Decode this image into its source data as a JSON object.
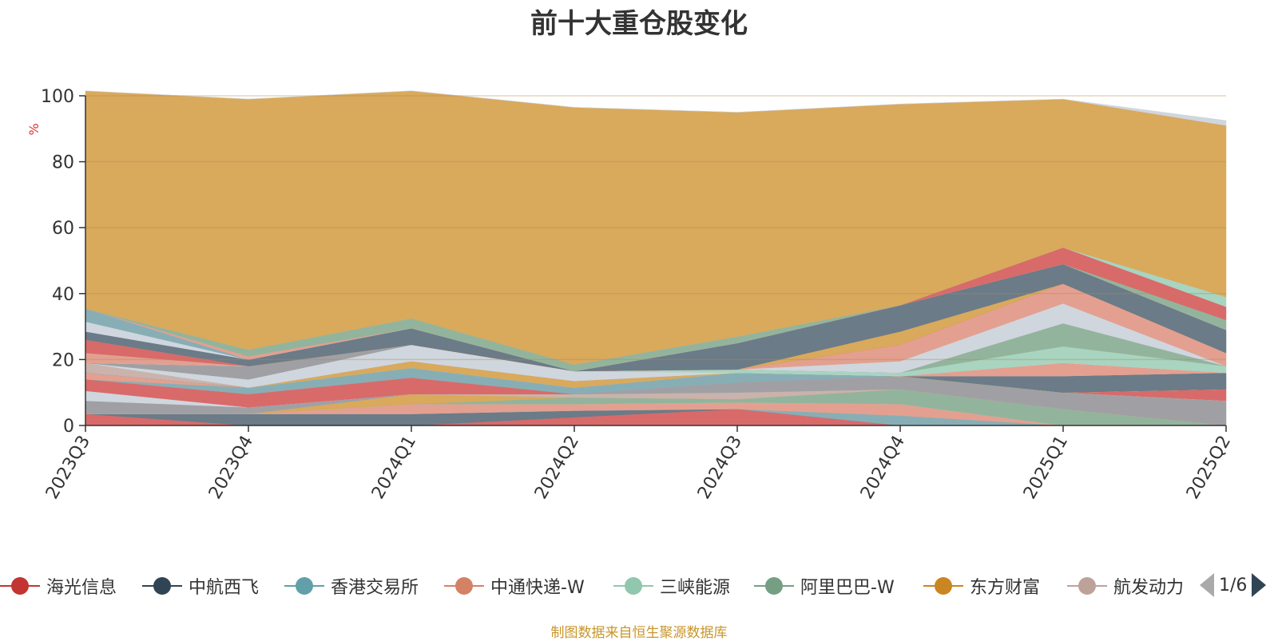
{
  "title": "前十大重仓股变化",
  "footer": "制图数据来自恒生聚源数据库",
  "pager": {
    "text": "1/6"
  },
  "legend": [
    {
      "name": "海光信息",
      "color": "#c23531"
    },
    {
      "name": "中航西飞",
      "color": "#2f4554"
    },
    {
      "name": "香港交易所",
      "color": "#61a0a8"
    },
    {
      "name": "中通快递-W",
      "color": "#d48265"
    },
    {
      "name": "三峡能源",
      "color": "#91c7ae"
    },
    {
      "name": "阿里巴巴-W",
      "color": "#749f83"
    },
    {
      "name": "东方财富",
      "color": "#ca8622"
    },
    {
      "name": "航发动力",
      "color": "#bda29a"
    }
  ],
  "chart_data": {
    "type": "area",
    "title": "前十大重仓股变化",
    "xlabel": "",
    "ylabel": "%",
    "ylim": [
      0,
      100
    ],
    "yticks": [
      "0",
      "20",
      "40",
      "60",
      "80",
      "100"
    ],
    "categories": [
      "2023Q3",
      "2023Q4",
      "2024Q1",
      "2024Q2",
      "2024Q3",
      "2024Q4",
      "2025Q1",
      "2025Q2"
    ],
    "grid": true,
    "legend_position": "bottom",
    "stacked": true,
    "series": [
      {
        "color": "#d96a6a",
        "values": [
          3.5,
          0,
          0,
          2.5,
          5,
          0,
          0,
          0
        ]
      },
      {
        "color": "#6b7b88",
        "values": [
          0,
          3.5,
          3.5,
          2,
          0,
          0,
          0,
          0
        ]
      },
      {
        "color": "#88aeb5",
        "values": [
          0,
          0,
          0,
          0,
          0,
          3,
          0,
          0
        ]
      },
      {
        "color": "#e3a090",
        "values": [
          0,
          0,
          3,
          2,
          2,
          3.5,
          0,
          0
        ]
      },
      {
        "color": "#a8d4c0",
        "values": [
          0,
          0,
          0,
          0,
          0,
          0,
          0,
          0
        ]
      },
      {
        "color": "#93b49c",
        "values": [
          0,
          0,
          0,
          2,
          1,
          4.5,
          5,
          0
        ]
      },
      {
        "color": "#d9a95c",
        "values": [
          0,
          0,
          3,
          0,
          0,
          0,
          0,
          0
        ]
      },
      {
        "color": "#c9b3ac",
        "values": [
          0,
          0,
          0,
          1,
          2,
          0,
          0,
          0
        ]
      },
      {
        "color": "#a0a0a4",
        "values": [
          4,
          2,
          0,
          0,
          3,
          4,
          5,
          7.5
        ]
      },
      {
        "color": "#cfd6de",
        "values": [
          3,
          0,
          0,
          0,
          0,
          0,
          0,
          0
        ]
      },
      {
        "color": "#d96a6a",
        "values": [
          3.5,
          4,
          5,
          0,
          0,
          0,
          0,
          3.5
        ]
      },
      {
        "color": "#88aeb5",
        "values": [
          0,
          2,
          3,
          2,
          3,
          0,
          0,
          0
        ]
      },
      {
        "color": "#e3a090",
        "values": [
          2,
          0,
          0,
          0,
          0,
          0,
          0,
          0
        ]
      },
      {
        "color": "#a8d4c0",
        "values": [
          0,
          0,
          0,
          0,
          0,
          0,
          0,
          0
        ]
      },
      {
        "color": "#d9a95c",
        "values": [
          0,
          0,
          2,
          2,
          0,
          0,
          0,
          0
        ]
      },
      {
        "color": "#6b7b88",
        "values": [
          0,
          0,
          0,
          0,
          0,
          0,
          5,
          5
        ]
      },
      {
        "color": "#c9b3ac",
        "values": [
          3,
          0,
          0,
          0,
          0,
          0,
          0,
          0
        ]
      },
      {
        "color": "#e3a090",
        "values": [
          0,
          0,
          0,
          0,
          0,
          0,
          4,
          0
        ]
      },
      {
        "color": "#cfd6de",
        "values": [
          0,
          2.5,
          5,
          3,
          0,
          0,
          0,
          0
        ]
      },
      {
        "color": "#a8d4c0",
        "values": [
          0,
          0,
          0,
          0,
          1,
          1,
          5,
          2
        ]
      },
      {
        "color": "#93b49c",
        "values": [
          0,
          0,
          0,
          0,
          0,
          0,
          7,
          0
        ]
      },
      {
        "color": "#a0a0a4",
        "values": [
          0,
          4,
          0,
          0,
          0,
          0,
          0,
          0
        ]
      },
      {
        "color": "#cfd6de",
        "values": [
          0,
          0,
          0,
          0,
          0,
          3.5,
          6,
          0
        ]
      },
      {
        "color": "#e3a090",
        "values": [
          3,
          0,
          0,
          0,
          0,
          5,
          6,
          4
        ]
      },
      {
        "color": "#d96a6a",
        "values": [
          4,
          0,
          0,
          0,
          0,
          0,
          0,
          0
        ]
      },
      {
        "color": "#d9a95c",
        "values": [
          0,
          0,
          0,
          0,
          0,
          4,
          0,
          0
        ]
      },
      {
        "color": "#6b7b88",
        "values": [
          2.5,
          2,
          5,
          0,
          8,
          8,
          6,
          7
        ]
      },
      {
        "color": "#cfd6de",
        "values": [
          3,
          0,
          0,
          0,
          0,
          0,
          0,
          0
        ]
      },
      {
        "color": "#88aeb5",
        "values": [
          4,
          0,
          0,
          0,
          0,
          0,
          0,
          0
        ]
      },
      {
        "color": "#e3a090",
        "values": [
          0,
          1,
          0,
          0,
          0,
          0,
          0,
          0
        ]
      },
      {
        "color": "#93b49c",
        "values": [
          0,
          2,
          3,
          2,
          2,
          0,
          0,
          3
        ]
      },
      {
        "color": "#d96a6a",
        "values": [
          0,
          0,
          0,
          0,
          0,
          0,
          5,
          4
        ]
      },
      {
        "color": "#a8d4c0",
        "values": [
          0,
          0,
          0,
          0,
          0,
          0,
          0,
          3
        ]
      },
      {
        "color": "#d9a95c",
        "values": [
          66,
          76,
          69,
          78,
          68,
          61,
          45,
          52
        ]
      },
      {
        "color": "#cfd6de",
        "values": [
          0,
          0,
          0,
          0,
          0,
          0,
          0,
          1.5
        ]
      }
    ]
  }
}
